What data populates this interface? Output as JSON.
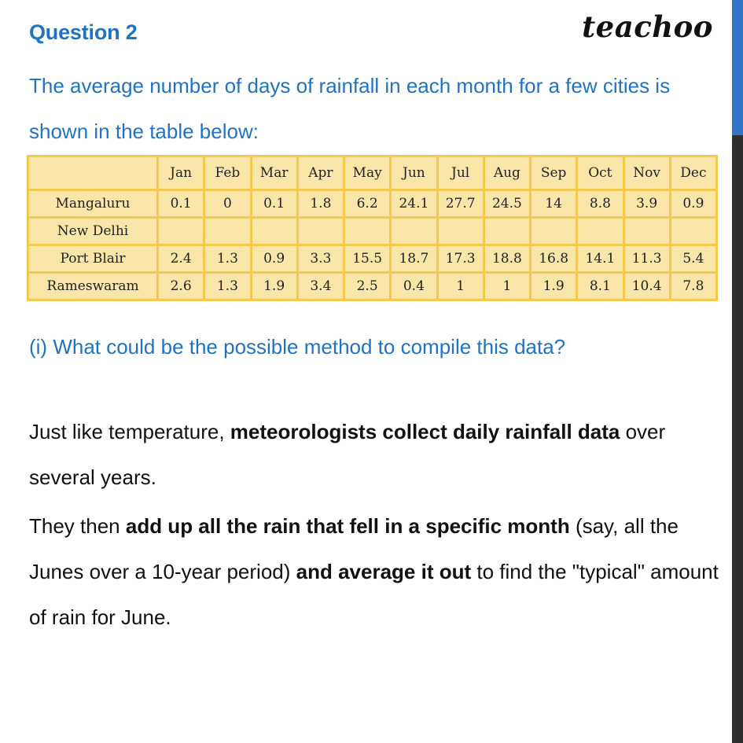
{
  "header": {
    "question_title": "Question 2",
    "logo_text": "teachoo"
  },
  "question": {
    "text": "The average number of days of rainfall in each month for a few cities is shown in the table below:"
  },
  "table": {
    "corner": "",
    "months": [
      "Jan",
      "Feb",
      "Mar",
      "Apr",
      "May",
      "Jun",
      "Jul",
      "Aug",
      "Sep",
      "Oct",
      "Nov",
      "Dec"
    ],
    "rows": [
      {
        "city": "Mangaluru",
        "values": [
          "0.1",
          "0",
          "0.1",
          "1.8",
          "6.2",
          "24.1",
          "27.7",
          "24.5",
          "14",
          "8.8",
          "3.9",
          "0.9"
        ]
      },
      {
        "city": "New Delhi",
        "values": [
          "",
          "",
          "",
          "",
          "",
          "",
          "",
          "",
          "",
          "",
          "",
          ""
        ]
      },
      {
        "city": "Port Blair",
        "values": [
          "2.4",
          "1.3",
          "0.9",
          "3.3",
          "15.5",
          "18.7",
          "17.3",
          "18.8",
          "16.8",
          "14.1",
          "11.3",
          "5.4"
        ]
      },
      {
        "city": "Rameswaram",
        "values": [
          "2.6",
          "1.3",
          "1.9",
          "3.4",
          "2.5",
          "0.4",
          "1",
          "1",
          "1.9",
          "8.1",
          "10.4",
          "7.8"
        ]
      }
    ],
    "colors": {
      "fill": "#f9e6a8",
      "border": "#f3c950"
    }
  },
  "sub_question": {
    "text": "(i) What could be the possible method to compile this data?"
  },
  "answer": {
    "p1": {
      "t1": "Just like temperature, ",
      "b1": "meteorologists collect daily rainfall data",
      "t2": " over several years."
    },
    "p2": {
      "t1": "They then ",
      "b1": "add up all the rain that fell in a specific month",
      "t2": " (say, all the Junes over a 10-year period) ",
      "b2": "and average it out",
      "t3": " to find the \"typical\" amount of rain for June."
    }
  },
  "colors": {
    "accent_blue": "#1f73c4",
    "scrollbar_thumb": "#2f74c8",
    "scrollbar_track": "#2f2f2f"
  }
}
